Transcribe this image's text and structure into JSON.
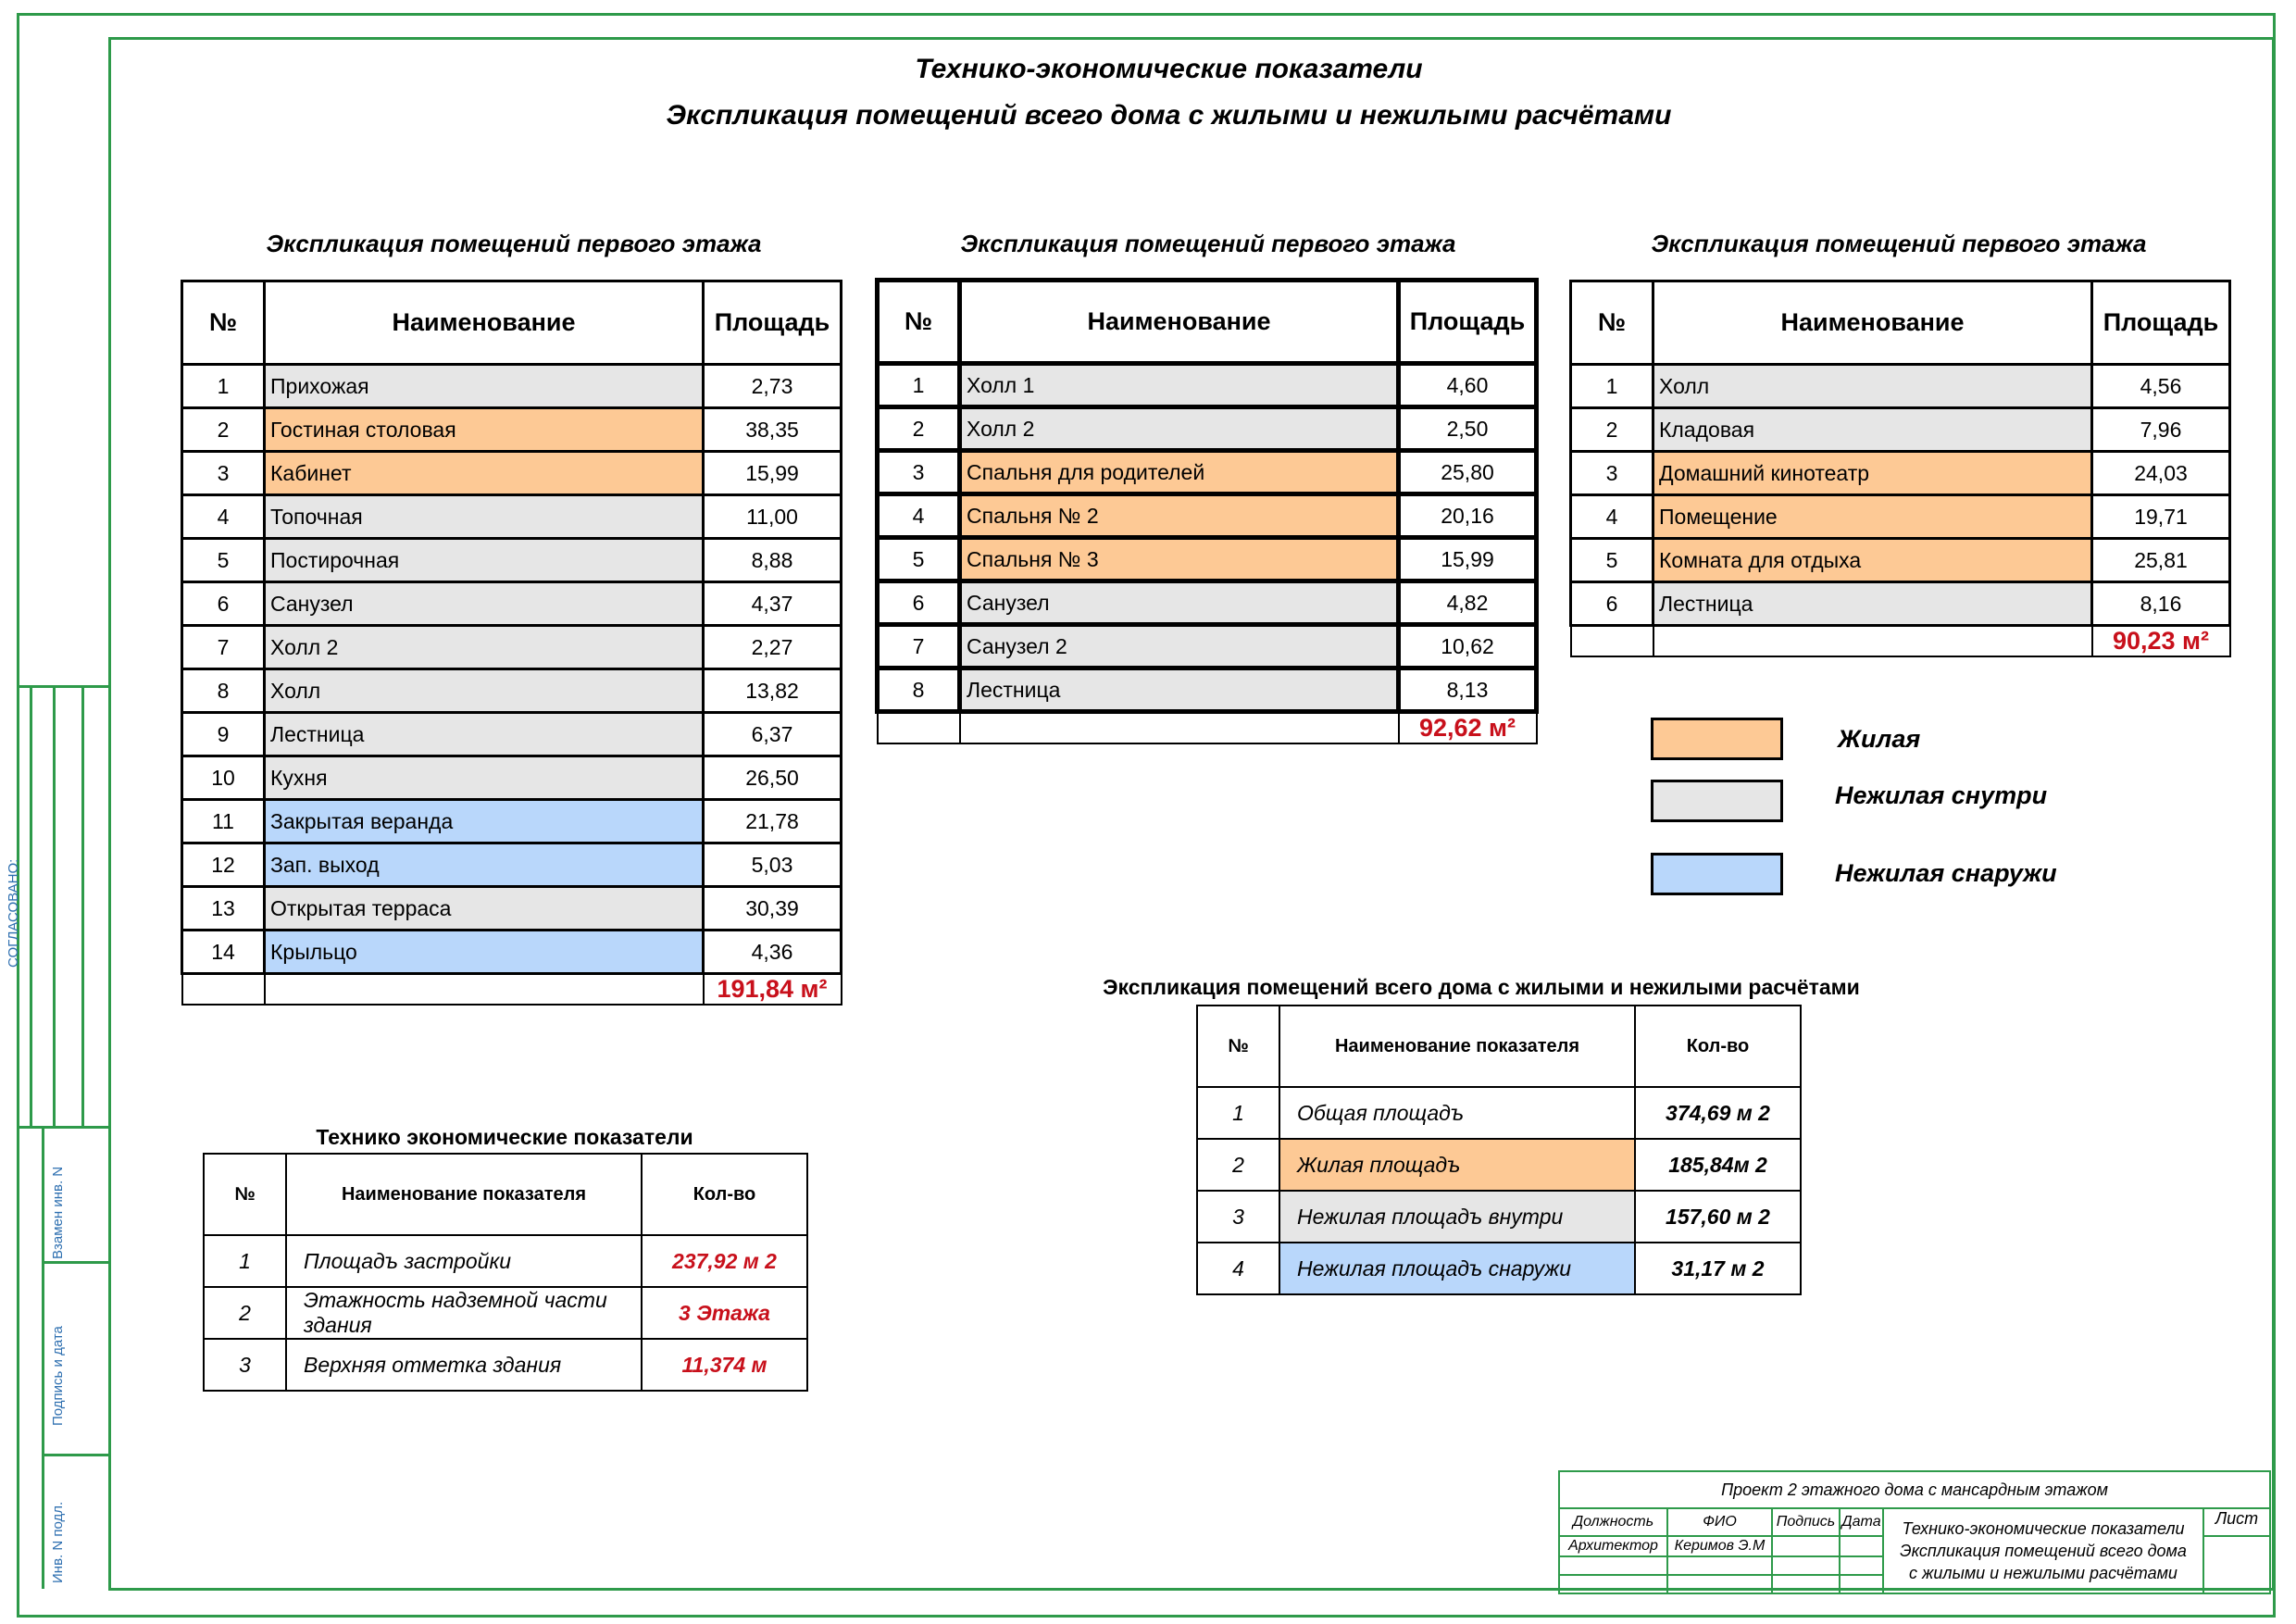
{
  "header": {
    "title1": "Технико-экономические показатели",
    "title2": "Экспликация помещений всего дома с жилыми и нежилыми расчётами"
  },
  "columns": {
    "no": "№",
    "name": "Наименование",
    "area": "Площадь"
  },
  "table1": {
    "caption": "Экспликация помещений первого этажа",
    "rows": [
      {
        "no": "1",
        "name": "Прихожая",
        "area": "2,73",
        "type": "inside"
      },
      {
        "no": "2",
        "name": "Гостиная столовая",
        "area": "38,35",
        "type": "res"
      },
      {
        "no": "3",
        "name": "Кабинет",
        "area": "15,99",
        "type": "res"
      },
      {
        "no": "4",
        "name": "Топочная",
        "area": "11,00",
        "type": "inside"
      },
      {
        "no": "5",
        "name": "Постирочная",
        "area": "8,88",
        "type": "inside"
      },
      {
        "no": "6",
        "name": "Санузел",
        "area": "4,37",
        "type": "inside"
      },
      {
        "no": "7",
        "name": "Холл 2",
        "area": "2,27",
        "type": "inside"
      },
      {
        "no": "8",
        "name": "Холл",
        "area": "13,82",
        "type": "inside"
      },
      {
        "no": "9",
        "name": "Лестница",
        "area": "6,37",
        "type": "inside"
      },
      {
        "no": "10",
        "name": "Кухня",
        "area": "26,50",
        "type": "inside"
      },
      {
        "no": "11",
        "name": "Закрытая веранда",
        "area": "21,78",
        "type": "outside"
      },
      {
        "no": "12",
        "name": "Зап. выход",
        "area": "5,03",
        "type": "outside"
      },
      {
        "no": "13",
        "name": "Открытая терраса",
        "area": "30,39",
        "type": "inside"
      },
      {
        "no": "14",
        "name": "Крыльцо",
        "area": "4,36",
        "type": "outside"
      }
    ],
    "total": "191,84 м²"
  },
  "table2": {
    "caption": "Экспликация помещений первого этажа",
    "rows": [
      {
        "no": "1",
        "name": "Холл 1",
        "area": "4,60",
        "type": "inside"
      },
      {
        "no": "2",
        "name": "Холл 2",
        "area": "2,50",
        "type": "inside"
      },
      {
        "no": "3",
        "name": "Спальня для родителей",
        "area": "25,80",
        "type": "res"
      },
      {
        "no": "4",
        "name": "Спальня № 2",
        "area": "20,16",
        "type": "res"
      },
      {
        "no": "5",
        "name": "Спальня № 3",
        "area": "15,99",
        "type": "res"
      },
      {
        "no": "6",
        "name": "Санузел",
        "area": "4,82",
        "type": "inside"
      },
      {
        "no": "7",
        "name": "Санузел 2",
        "area": "10,62",
        "type": "inside"
      },
      {
        "no": "8",
        "name": "Лестница",
        "area": "8,13",
        "type": "inside"
      }
    ],
    "total": "92,62 м²"
  },
  "table3": {
    "caption": "Экспликация помещений первого этажа",
    "rows": [
      {
        "no": "1",
        "name": "Холл",
        "area": "4,56",
        "type": "inside"
      },
      {
        "no": "2",
        "name": "Кладовая",
        "area": "7,96",
        "type": "inside"
      },
      {
        "no": "3",
        "name": "Домашний кинотеатр",
        "area": "24,03",
        "type": "res"
      },
      {
        "no": "4",
        "name": "Помещение",
        "area": "19,71",
        "type": "res"
      },
      {
        "no": "5",
        "name": "Комната для отдыха",
        "area": "25,81",
        "type": "res"
      },
      {
        "no": "6",
        "name": "Лестница",
        "area": "8,16",
        "type": "inside"
      }
    ],
    "total": "90,23 м²"
  },
  "legend": [
    {
      "label": "Жилая",
      "color": "#fdc995"
    },
    {
      "label": "Нежилая снутри",
      "color": "#e6e6e6"
    },
    {
      "label": "Нежилая снаружи",
      "color": "#b9d7fb"
    }
  ],
  "tep": {
    "caption": "Технико экономические показатели",
    "headers": {
      "no": "№",
      "name": "Наименование показателя",
      "value": "Кол-во"
    },
    "rows": [
      {
        "no": "1",
        "name": "Площадъ застройки",
        "value": "237,92 м 2"
      },
      {
        "no": "2",
        "name": "Этажность надземной части здания",
        "value": "3 Этажа"
      },
      {
        "no": "3",
        "name": "Верхняя отметка здания",
        "value": "11,374 м"
      }
    ]
  },
  "summary": {
    "caption": "Экспликация помещений всего дома  с жилыми и нежилыми расчётами",
    "headers": {
      "no": "№",
      "name": "Наименование показателя",
      "value": "Кол-во"
    },
    "rows": [
      {
        "no": "1",
        "name": "Общая площадъ",
        "value": "374,69 м 2",
        "type": ""
      },
      {
        "no": "2",
        "name": "Жилая площадъ",
        "value": "185,84м 2",
        "type": "res"
      },
      {
        "no": "3",
        "name": "Нежилая площадъ внутри",
        "value": "157,60 м 2",
        "type": "inside"
      },
      {
        "no": "4",
        "name": "Нежилая площадъ снаружи",
        "value": "31,17 м 2",
        "type": "outside"
      }
    ]
  },
  "side": {
    "agreed": "СОГЛАСОВАНО:",
    "replace": "Взамен инв. N",
    "sign": "Подпись и дата",
    "inv": "Инв. N подл."
  },
  "stamp": {
    "project": "Проект 2 этажного дома с мансардным этажом",
    "h_position": "Должность",
    "h_name": "ФИО",
    "h_sign": "Подпись",
    "h_date": "Дата",
    "role": "Архитектор",
    "person": "Керимов Э.М",
    "doc1": "Технико-экономические показатели",
    "doc2": "Экспликация помещений всего дома",
    "doc3": "с жилыми и нежилыми расчётами",
    "sheet": "Лист"
  },
  "colors": {
    "frame": "#2e9a4a",
    "residential": "#fdc995",
    "inside": "#e6e6e6",
    "outside": "#b9d7fb",
    "total": "#c8101b"
  }
}
